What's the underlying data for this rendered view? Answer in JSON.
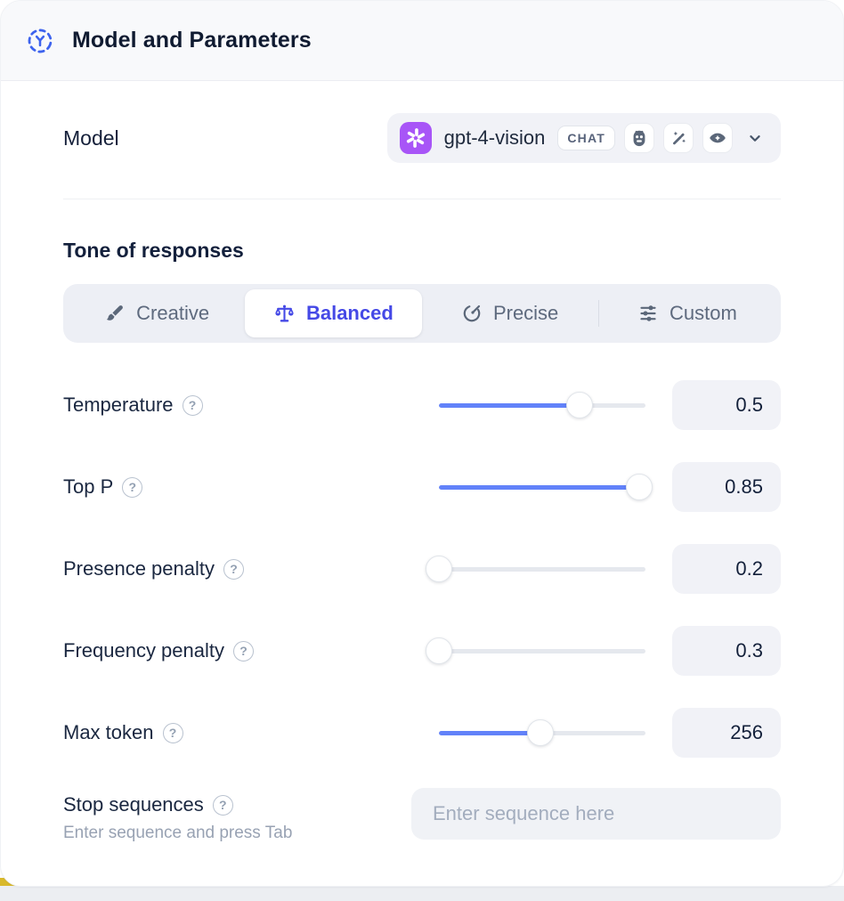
{
  "header": {
    "title": "Model and Parameters"
  },
  "model_row": {
    "label": "Model",
    "selected_model": "gpt-4-vision",
    "type_badge": "CHAT",
    "capability_icons": [
      "robot-icon",
      "magic-wand-icon",
      "vision-eye-icon"
    ]
  },
  "tone": {
    "heading": "Tone of responses",
    "options": [
      {
        "label": "Creative",
        "icon": "paintbrush-icon",
        "selected": false
      },
      {
        "label": "Balanced",
        "icon": "balance-scale-icon",
        "selected": true
      },
      {
        "label": "Precise",
        "icon": "target-pen-icon",
        "selected": false
      },
      {
        "label": "Custom",
        "icon": "sliders-icon",
        "selected": false
      }
    ]
  },
  "parameters": [
    {
      "label": "Temperature",
      "value": "0.5",
      "fill_percent": 68
    },
    {
      "label": "Top P",
      "value": "0.85",
      "fill_percent": 97
    },
    {
      "label": "Presence penalty",
      "value": "0.2",
      "fill_percent": 0
    },
    {
      "label": "Frequency penalty",
      "value": "0.3",
      "fill_percent": 0
    },
    {
      "label": "Max token",
      "value": "256",
      "fill_percent": 49
    }
  ],
  "stop_sequences": {
    "label": "Stop sequences",
    "helper": "Enter sequence and press Tab",
    "placeholder": "Enter sequence here"
  },
  "colors": {
    "selected_tone_blue": "#4549e6",
    "slider_blue": "#6282f9",
    "model_logo_purple": "#a855f7",
    "header_background": "#f8f9fb",
    "field_background": "#f1f2f7",
    "corner_accent_yellow": "#d9b92c"
  }
}
